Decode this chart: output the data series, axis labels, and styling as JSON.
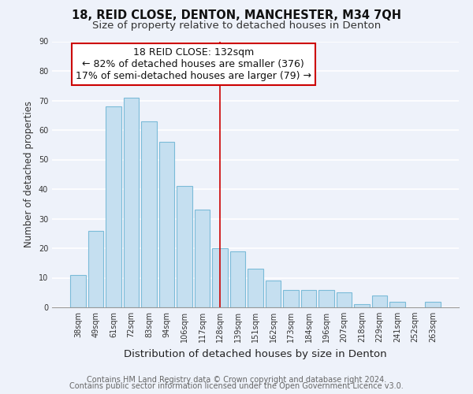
{
  "title_line1": "18, REID CLOSE, DENTON, MANCHESTER, M34 7QH",
  "title_line2": "Size of property relative to detached houses in Denton",
  "xlabel": "Distribution of detached houses by size in Denton",
  "ylabel": "Number of detached properties",
  "footer_line1": "Contains HM Land Registry data © Crown copyright and database right 2024.",
  "footer_line2": "Contains public sector information licensed under the Open Government Licence v3.0.",
  "bar_labels": [
    "38sqm",
    "49sqm",
    "61sqm",
    "72sqm",
    "83sqm",
    "94sqm",
    "106sqm",
    "117sqm",
    "128sqm",
    "139sqm",
    "151sqm",
    "162sqm",
    "173sqm",
    "184sqm",
    "196sqm",
    "207sqm",
    "218sqm",
    "229sqm",
    "241sqm",
    "252sqm",
    "263sqm"
  ],
  "bar_values": [
    11,
    26,
    68,
    71,
    63,
    56,
    41,
    33,
    20,
    19,
    13,
    9,
    6,
    6,
    6,
    5,
    1,
    4,
    2,
    0,
    2
  ],
  "bar_color": "#c5dff0",
  "bar_edge_color": "#7bbbd8",
  "highlight_index": 8,
  "highlight_line_color": "#cc0000",
  "annotation_line1": "18 REID CLOSE: 132sqm",
  "annotation_line2": "← 82% of detached houses are smaller (376)",
  "annotation_line3": "17% of semi-detached houses are larger (79) →",
  "annotation_box_edge_color": "#cc0000",
  "annotation_box_face_color": "#ffffff",
  "ylim": [
    0,
    90
  ],
  "yticks": [
    0,
    10,
    20,
    30,
    40,
    50,
    60,
    70,
    80,
    90
  ],
  "background_color": "#eef2fa",
  "grid_color": "#ffffff",
  "title1_fontsize": 10.5,
  "title2_fontsize": 9.5,
  "ylabel_fontsize": 8.5,
  "xlabel_fontsize": 9.5,
  "tick_fontsize": 7.0,
  "footer_fontsize": 7.0,
  "annotation_fontsize": 9.0
}
